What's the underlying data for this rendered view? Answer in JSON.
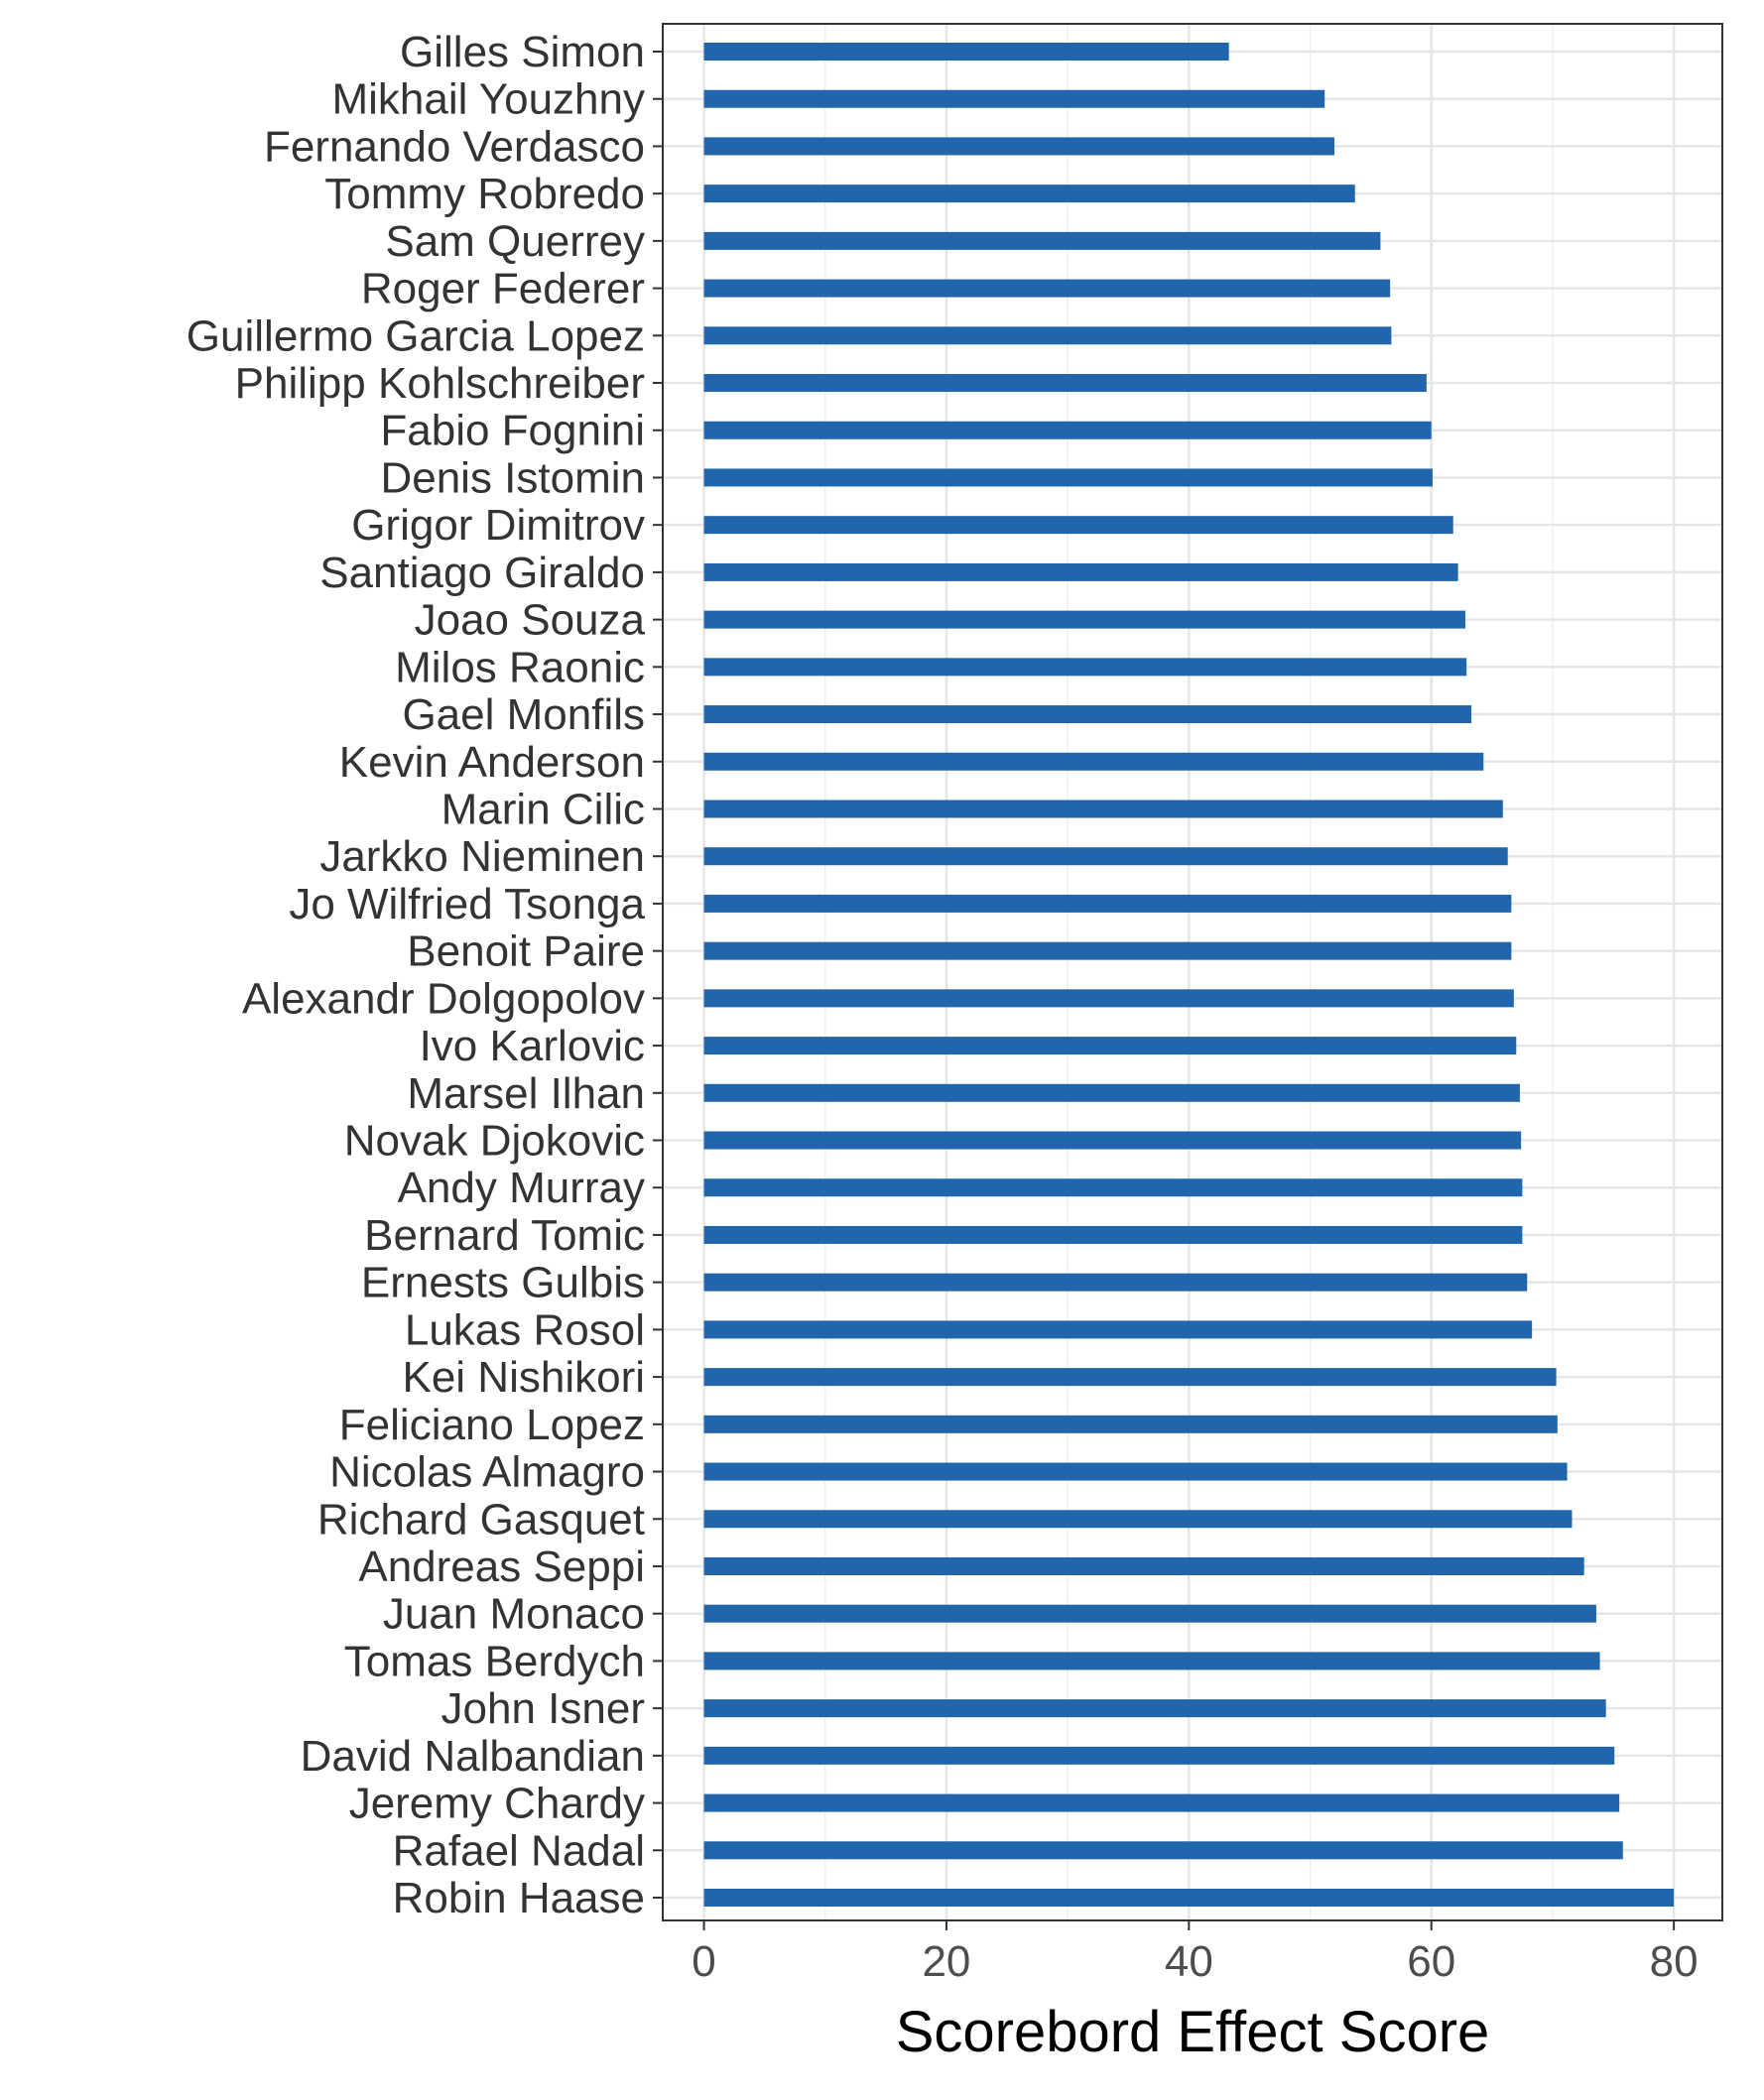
{
  "chart_data": {
    "type": "bar",
    "orientation": "horizontal",
    "title": "",
    "xlabel": "Scorebord Effect Score",
    "ylabel": "",
    "xlim": [
      -3.4,
      84.0
    ],
    "x_ticks": [
      0,
      20,
      40,
      60,
      80
    ],
    "grid": true,
    "legend": "none",
    "bar_color": "#2166ac",
    "categories": [
      "Gilles Simon",
      "Mikhail Youzhny",
      "Fernando Verdasco",
      "Tommy Robredo",
      "Sam Querrey",
      "Roger Federer",
      "Guillermo Garcia Lopez",
      "Philipp Kohlschreiber",
      "Fabio Fognini",
      "Denis Istomin",
      "Grigor Dimitrov",
      "Santiago Giraldo",
      "Joao Souza",
      "Milos Raonic",
      "Gael Monfils",
      "Kevin Anderson",
      "Marin Cilic",
      "Jarkko Nieminen",
      "Jo Wilfried Tsonga",
      "Benoit Paire",
      "Alexandr Dolgopolov",
      "Ivo Karlovic",
      "Marsel Ilhan",
      "Novak Djokovic",
      "Andy Murray",
      "Bernard Tomic",
      "Ernests Gulbis",
      "Lukas Rosol",
      "Kei Nishikori",
      "Feliciano Lopez",
      "Nicolas Almagro",
      "Richard Gasquet",
      "Andreas Seppi",
      "Juan Monaco",
      "Tomas Berdych",
      "John Isner",
      "David Nalbandian",
      "Jeremy Chardy",
      "Rafael Nadal",
      "Robin Haase"
    ],
    "values": [
      43.3,
      51.2,
      52.0,
      53.7,
      55.8,
      56.6,
      56.7,
      59.6,
      60.0,
      60.1,
      61.8,
      62.2,
      62.8,
      62.9,
      63.3,
      64.3,
      65.9,
      66.3,
      66.6,
      66.6,
      66.8,
      67.0,
      67.3,
      67.4,
      67.5,
      67.5,
      67.9,
      68.3,
      70.3,
      70.4,
      71.2,
      71.6,
      72.6,
      73.6,
      73.9,
      74.4,
      75.1,
      75.5,
      75.8,
      80.0
    ]
  }
}
